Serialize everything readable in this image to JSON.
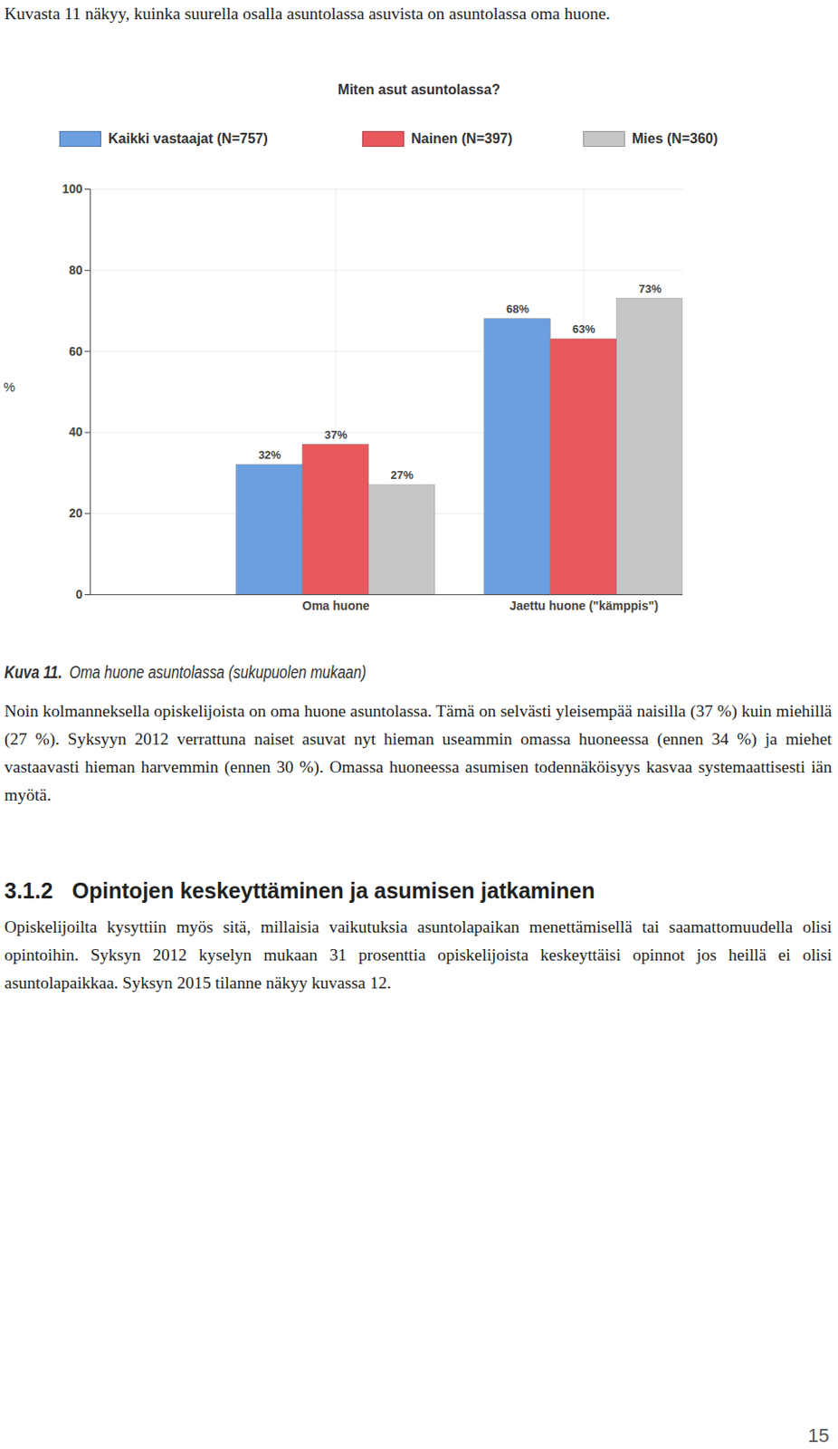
{
  "intro": "Kuvasta 11 näkyy, kuinka suurella osalla asuntolassa asuvista on asuntolassa oma huone.",
  "chart_data": {
    "type": "bar",
    "title": "Miten asut asuntolassa?",
    "categories": [
      "Oma huone",
      "Jaettu huone (\"kämppis\")"
    ],
    "series": [
      {
        "name": "Kaikki vastaajat (N=757)",
        "color": "#6b9fe0",
        "values": [
          32,
          68
        ],
        "value_labels": [
          "32%",
          "68%"
        ]
      },
      {
        "name": "Nainen (N=397)",
        "color": "#e9585c",
        "values": [
          37,
          63
        ],
        "value_labels": [
          "37%",
          "63%"
        ]
      },
      {
        "name": "Mies (N=360)",
        "color": "#c6c6c6",
        "values": [
          27,
          73
        ],
        "value_labels": [
          "27%",
          "73%"
        ]
      }
    ],
    "y_label": "%",
    "ylim": [
      0,
      100
    ],
    "yticks": [
      0,
      20,
      40,
      60,
      80,
      100
    ],
    "grid": true,
    "legend": "top",
    "data_labels": true
  },
  "caption": {
    "label": "Kuva 11.",
    "text": "Oma huone asuntolassa (sukupuolen mukaan)"
  },
  "paragraphs": [
    "Noin kolmanneksella opiskelijoista on oma huone asuntolassa. Tämä on selvästi yleisempää naisilla (37 %) kuin miehillä (27 %). Syksyyn 2012 verrattuna naiset asuvat nyt hieman useammin omassa huoneessa (ennen 34 %) ja miehet vastaavasti hieman harvemmin (ennen 30 %). Omassa huoneessa asumisen todennäköisyys kasvaa systemaattisesti iän myötä.",
    "Opiskelijoilta kysyttiin myös sitä, millaisia vaikutuksia asuntolapaikan menettämisellä tai saamattomuudella olisi opintoihin. Syksyn 2012 kyselyn mukaan 31 prosenttia opiskelijoista keskeyttäisi opinnot jos heillä ei olisi asuntolapaikkaa. Syksyn 2015 tilanne näkyy kuvassa 12."
  ],
  "heading": {
    "number": "3.1.2",
    "text": "Opintojen keskeyttäminen ja asumisen jatkaminen"
  },
  "page_number": "15"
}
